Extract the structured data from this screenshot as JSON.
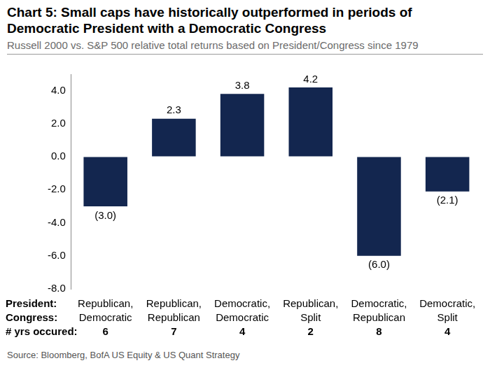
{
  "chart_data": {
    "type": "bar",
    "title": "Chart 5: Small caps have historically outperformed in periods of Democratic President with a Democratic Congress",
    "subtitle": "Russell 2000 vs. S&P 500 relative total returns based on President/Congress since 1979",
    "source": "Source: Bloomberg, BofA US Equity & US Quant Strategy",
    "category_row_labels": [
      "President:",
      "Congress:",
      "# yrs occured:"
    ],
    "categories": [
      [
        "Republican,",
        "Democratic"
      ],
      [
        "Republican,",
        "Republican"
      ],
      [
        "Democratic,",
        "Democratic"
      ],
      [
        "Republican,",
        "Split"
      ],
      [
        "Democratic,",
        "Republican"
      ],
      [
        "Democratic,",
        "Split"
      ]
    ],
    "years_occurred": [
      6,
      7,
      4,
      2,
      8,
      4
    ],
    "values": [
      -3.0,
      2.3,
      3.8,
      4.2,
      -6.0,
      -2.1
    ],
    "value_labels": [
      "(3.0)",
      "2.3",
      "3.8",
      "4.2",
      "(6.0)",
      "(2.1)"
    ],
    "color": "#13264f",
    "ylim": [
      -8,
      5
    ],
    "yticks": [
      {
        "value": -8,
        "label": "-8.0"
      },
      {
        "value": -6,
        "label": "-6.0"
      },
      {
        "value": -4,
        "label": "-4.0"
      },
      {
        "value": -2,
        "label": "-2.0"
      },
      {
        "value": 0,
        "label": "0.0"
      },
      {
        "value": 2,
        "label": "2.0"
      },
      {
        "value": 4,
        "label": "4.0"
      }
    ],
    "grid": false,
    "data_labels": true
  }
}
